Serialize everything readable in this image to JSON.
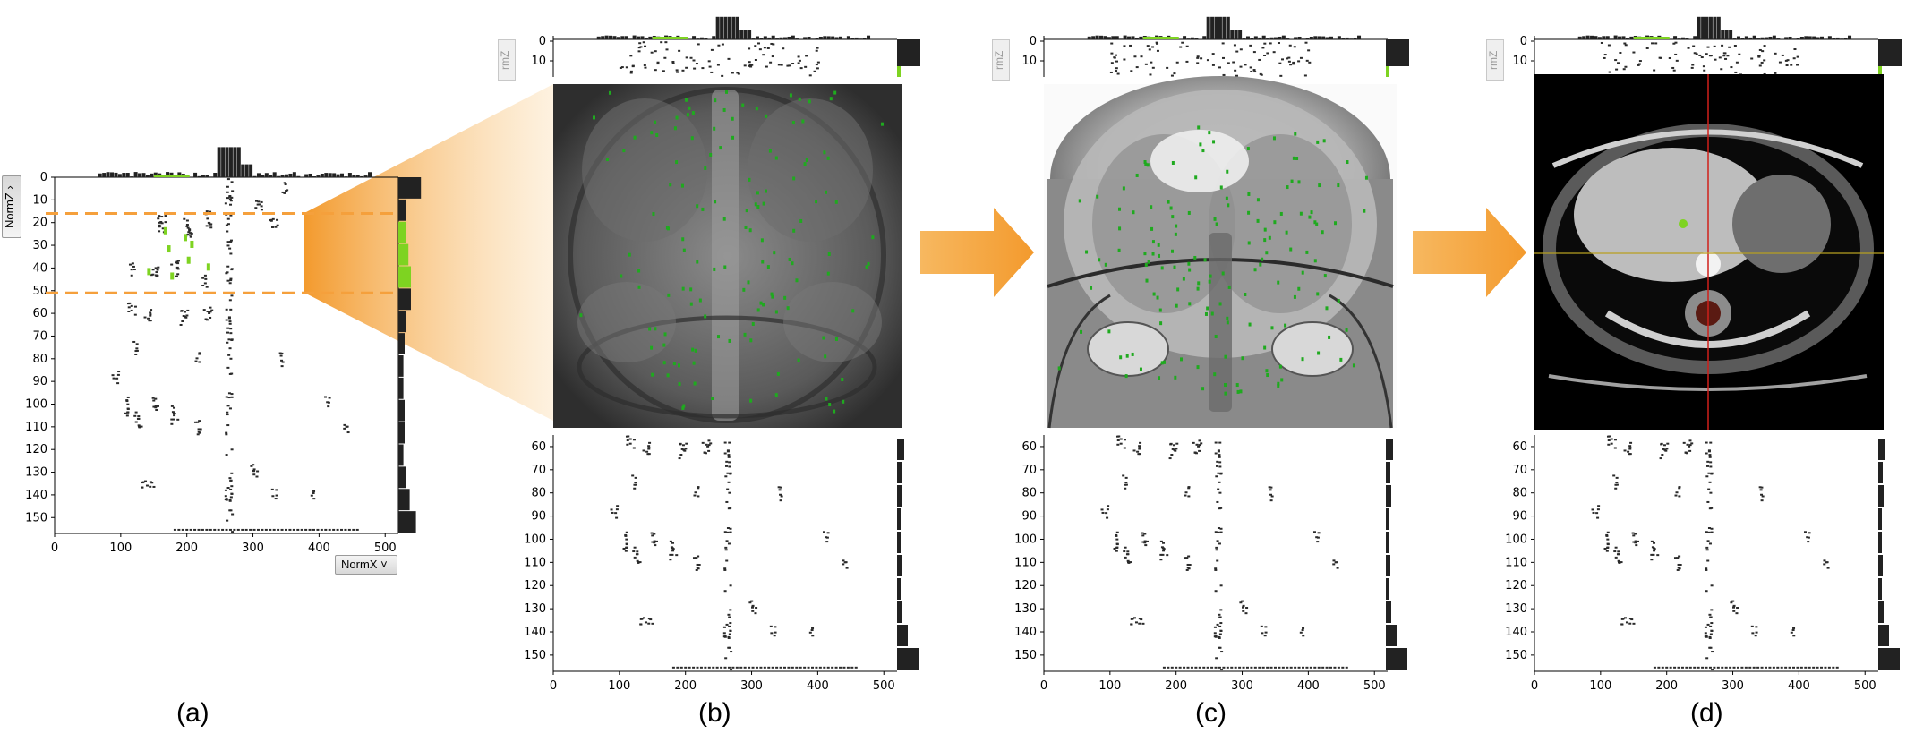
{
  "panel_labels": [
    "(a)",
    "(b)",
    "(c)",
    "(d)"
  ],
  "axes": {
    "z_selector": "NormZ",
    "x_selector": "NormX",
    "z_selector_partial": "rmZ"
  },
  "colors": {
    "points": "#2b2b2b",
    "highlight": "#7ed321",
    "selection": "#f5a03c",
    "histogram": "#222222",
    "arrow": "#f5a23a",
    "crosshair_red": "#d0201a",
    "crosshair_yellow": "#b8a020",
    "render_bg": "#3a3a3a"
  },
  "chart_data": [
    {
      "type": "scatter",
      "panel": "(a)",
      "ylabel": "NormZ",
      "xlabel": "NormX",
      "xlim": [
        0,
        520
      ],
      "ylim": [
        157,
        0
      ],
      "x_ticks": [
        0,
        100,
        200,
        300,
        400,
        500
      ],
      "y_ticks": [
        0,
        10,
        20,
        30,
        40,
        50,
        60,
        70,
        80,
        90,
        100,
        110,
        120,
        130,
        140,
        150
      ],
      "selection_band": [
        16,
        51
      ],
      "side_histogram": "right",
      "top_histogram": true
    },
    {
      "type": "scatter",
      "panel": "(b)",
      "xlim": [
        0,
        520
      ],
      "ylim": [
        157,
        55
      ],
      "x_ticks": [
        0,
        100,
        200,
        300,
        400,
        500
      ],
      "y_ticks": [
        60,
        70,
        80,
        90,
        100,
        110,
        120,
        130,
        140,
        150
      ],
      "top_strip_y_ticks": [
        0,
        10
      ]
    },
    {
      "type": "scatter",
      "panel": "(c)",
      "xlim": [
        0,
        520
      ],
      "ylim": [
        157,
        55
      ],
      "x_ticks": [
        0,
        100,
        200,
        300,
        400,
        500
      ],
      "y_ticks": [
        60,
        70,
        80,
        90,
        100,
        110,
        120,
        130,
        140,
        150
      ],
      "top_strip_y_ticks": [
        0,
        10
      ]
    },
    {
      "type": "scatter",
      "panel": "(d)",
      "xlim": [
        0,
        520
      ],
      "ylim": [
        157,
        55
      ],
      "x_ticks": [
        0,
        100,
        200,
        300,
        400,
        500
      ],
      "y_ticks": [
        60,
        70,
        80,
        90,
        100,
        110,
        120,
        130,
        140,
        150
      ],
      "top_strip_y_ticks": [
        0,
        10
      ]
    }
  ],
  "renders": [
    {
      "panel": "(b)",
      "kind": "volume-rendering-torso"
    },
    {
      "panel": "(c)",
      "kind": "volume-rendering-thorax"
    },
    {
      "panel": "(d)",
      "kind": "ct-slice-axial"
    }
  ]
}
